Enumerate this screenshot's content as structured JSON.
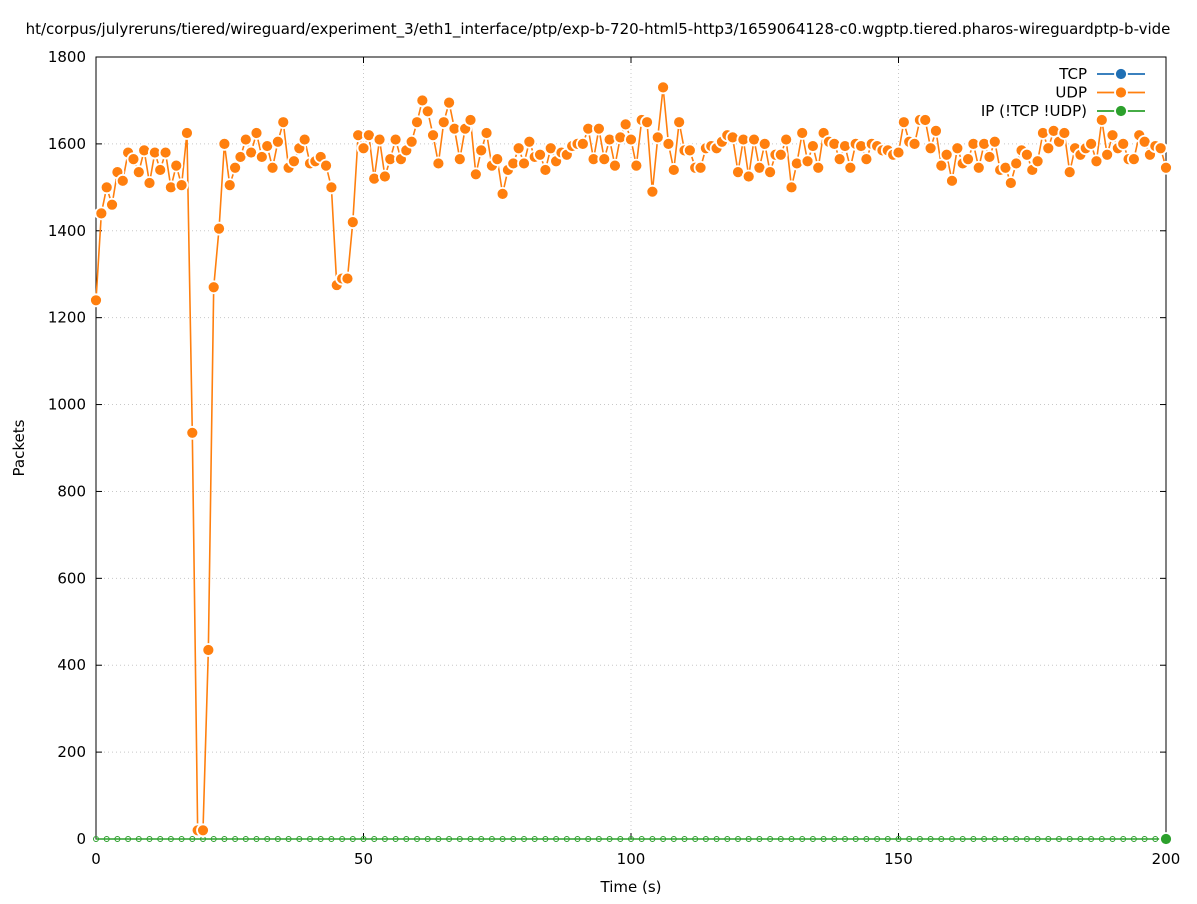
{
  "chart_data": {
    "type": "line",
    "title": "ht/corpus/julyreruns/tiered/wireguard/experiment_3/eth1_interface/ptp/exp-b-720-html5-http3/1659064128-c0.wgptp.tiered.pharos-wireguardptp-b-vide",
    "xlabel": "Time (s)",
    "ylabel": "Packets",
    "xlim": [
      0,
      200
    ],
    "ylim": [
      0,
      1800
    ],
    "xticks": [
      0,
      50,
      100,
      150,
      200
    ],
    "yticks": [
      0,
      200,
      400,
      600,
      800,
      1000,
      1200,
      1400,
      1600,
      1800
    ],
    "grid": true,
    "legend_position": "top-right",
    "series": [
      {
        "name": "TCP",
        "color": "#1f6fb4",
        "x": [],
        "values": []
      },
      {
        "name": "UDP",
        "color": "#ff7f0e",
        "x": [
          0,
          1,
          2,
          3,
          4,
          5,
          6,
          7,
          8,
          9,
          10,
          11,
          12,
          13,
          14,
          15,
          16,
          17,
          18,
          19,
          20,
          21,
          22,
          23,
          24,
          25,
          26,
          27,
          28,
          29,
          30,
          31,
          32,
          33,
          34,
          35,
          36,
          37,
          38,
          39,
          40,
          41,
          42,
          43,
          44,
          45,
          46,
          47,
          48,
          49,
          50,
          51,
          52,
          53,
          54,
          55,
          56,
          57,
          58,
          59,
          60,
          61,
          62,
          63,
          64,
          65,
          66,
          67,
          68,
          69,
          70,
          71,
          72,
          73,
          74,
          75,
          76,
          77,
          78,
          79,
          80,
          81,
          82,
          83,
          84,
          85,
          86,
          87,
          88,
          89,
          90,
          91,
          92,
          93,
          94,
          95,
          96,
          97,
          98,
          99,
          100,
          101,
          102,
          103,
          104,
          105,
          106,
          107,
          108,
          109,
          110,
          111,
          112,
          113,
          114,
          115,
          116,
          117,
          118,
          119,
          120,
          121,
          122,
          123,
          124,
          125,
          126,
          127,
          128,
          129,
          130,
          131,
          132,
          133,
          134,
          135,
          136,
          137,
          138,
          139,
          140,
          141,
          142,
          143,
          144,
          145,
          146,
          147,
          148,
          149,
          150,
          151,
          152,
          153,
          154,
          155,
          156,
          157,
          158,
          159,
          160,
          161,
          162,
          163,
          164,
          165,
          166,
          167,
          168,
          169,
          170,
          171,
          172,
          173,
          174,
          175,
          176,
          177,
          178,
          179,
          180,
          181,
          182,
          183,
          184,
          185,
          186,
          187,
          188,
          189,
          190,
          191,
          192,
          193,
          194,
          195,
          196,
          197,
          198,
          199,
          200
        ],
        "values": [
          1240,
          1440,
          1500,
          1460,
          1535,
          1515,
          1580,
          1565,
          1535,
          1585,
          1510,
          1580,
          1540,
          1580,
          1500,
          1550,
          1505,
          1625,
          935,
          20,
          20,
          435,
          1270,
          1405,
          1600,
          1505,
          1545,
          1570,
          1610,
          1580,
          1625,
          1570,
          1595,
          1545,
          1605,
          1650,
          1545,
          1560,
          1590,
          1610,
          1555,
          1560,
          1570,
          1550,
          1500,
          1275,
          1290,
          1290,
          1420,
          1620,
          1590,
          1620,
          1520,
          1610,
          1525,
          1565,
          1610,
          1565,
          1585,
          1605,
          1650,
          1700,
          1675,
          1620,
          1555,
          1650,
          1695,
          1635,
          1565,
          1635,
          1655,
          1530,
          1585,
          1625,
          1550,
          1565,
          1485,
          1540,
          1555,
          1590,
          1555,
          1605,
          1570,
          1575,
          1540,
          1590,
          1560,
          1580,
          1575,
          1595,
          1600,
          1600,
          1635,
          1565,
          1635,
          1565,
          1610,
          1550,
          1615,
          1645,
          1610,
          1550,
          1655,
          1650,
          1490,
          1615,
          1730,
          1600,
          1540,
          1650,
          1585,
          1585,
          1545,
          1545,
          1590,
          1595,
          1590,
          1605,
          1620,
          1615,
          1535,
          1610,
          1525,
          1610,
          1545,
          1600,
          1535,
          1575,
          1575,
          1610,
          1500,
          1555,
          1625,
          1560,
          1595,
          1545,
          1625,
          1605,
          1600,
          1565,
          1595,
          1545,
          1600,
          1595,
          1565,
          1600,
          1595,
          1585,
          1585,
          1575,
          1580,
          1650,
          1605,
          1600,
          1655,
          1655,
          1590,
          1630,
          1550,
          1575,
          1515,
          1590,
          1555,
          1565,
          1600,
          1545,
          1600,
          1570,
          1605,
          1540,
          1545,
          1510,
          1555,
          1585,
          1575,
          1540,
          1560,
          1625,
          1590,
          1630,
          1605,
          1625,
          1535,
          1590,
          1575,
          1590,
          1600,
          1560,
          1655,
          1575,
          1620,
          1590,
          1600,
          1565,
          1565,
          1620,
          1605,
          1575,
          1595,
          1590,
          1545
        ]
      },
      {
        "name": "IP (!TCP  !UDP)",
        "color": "#2ca02c",
        "x": [
          0,
          2,
          4,
          6,
          8,
          10,
          12,
          14,
          16,
          18,
          20,
          22,
          24,
          26,
          28,
          30,
          32,
          34,
          36,
          38,
          40,
          42,
          44,
          46,
          48,
          50,
          52,
          54,
          56,
          58,
          60,
          62,
          64,
          66,
          68,
          70,
          72,
          74,
          76,
          78,
          80,
          82,
          84,
          86,
          88,
          90,
          92,
          94,
          96,
          98,
          100,
          102,
          104,
          106,
          108,
          110,
          112,
          114,
          116,
          118,
          120,
          122,
          124,
          126,
          128,
          130,
          132,
          134,
          136,
          138,
          140,
          142,
          144,
          146,
          148,
          150,
          152,
          154,
          156,
          158,
          160,
          162,
          164,
          166,
          168,
          170,
          172,
          174,
          176,
          178,
          180,
          182,
          184,
          186,
          188,
          190,
          192,
          194,
          196,
          198,
          200
        ],
        "values": [
          0,
          0,
          0,
          0,
          0,
          0,
          0,
          0,
          0,
          0,
          0,
          0,
          0,
          0,
          0,
          0,
          0,
          0,
          0,
          0,
          0,
          0,
          0,
          0,
          0,
          0,
          0,
          0,
          0,
          0,
          0,
          0,
          0,
          0,
          0,
          0,
          0,
          0,
          0,
          0,
          0,
          0,
          0,
          0,
          0,
          0,
          0,
          0,
          0,
          0,
          0,
          0,
          0,
          0,
          0,
          0,
          0,
          0,
          0,
          0,
          0,
          0,
          0,
          0,
          0,
          0,
          0,
          0,
          0,
          0,
          0,
          0,
          0,
          0,
          0,
          0,
          0,
          0,
          0,
          0,
          0,
          0,
          0,
          0,
          0,
          0,
          0,
          0,
          0,
          0,
          0,
          0,
          0,
          0,
          0,
          0,
          0,
          0,
          0,
          0,
          0
        ]
      }
    ]
  }
}
